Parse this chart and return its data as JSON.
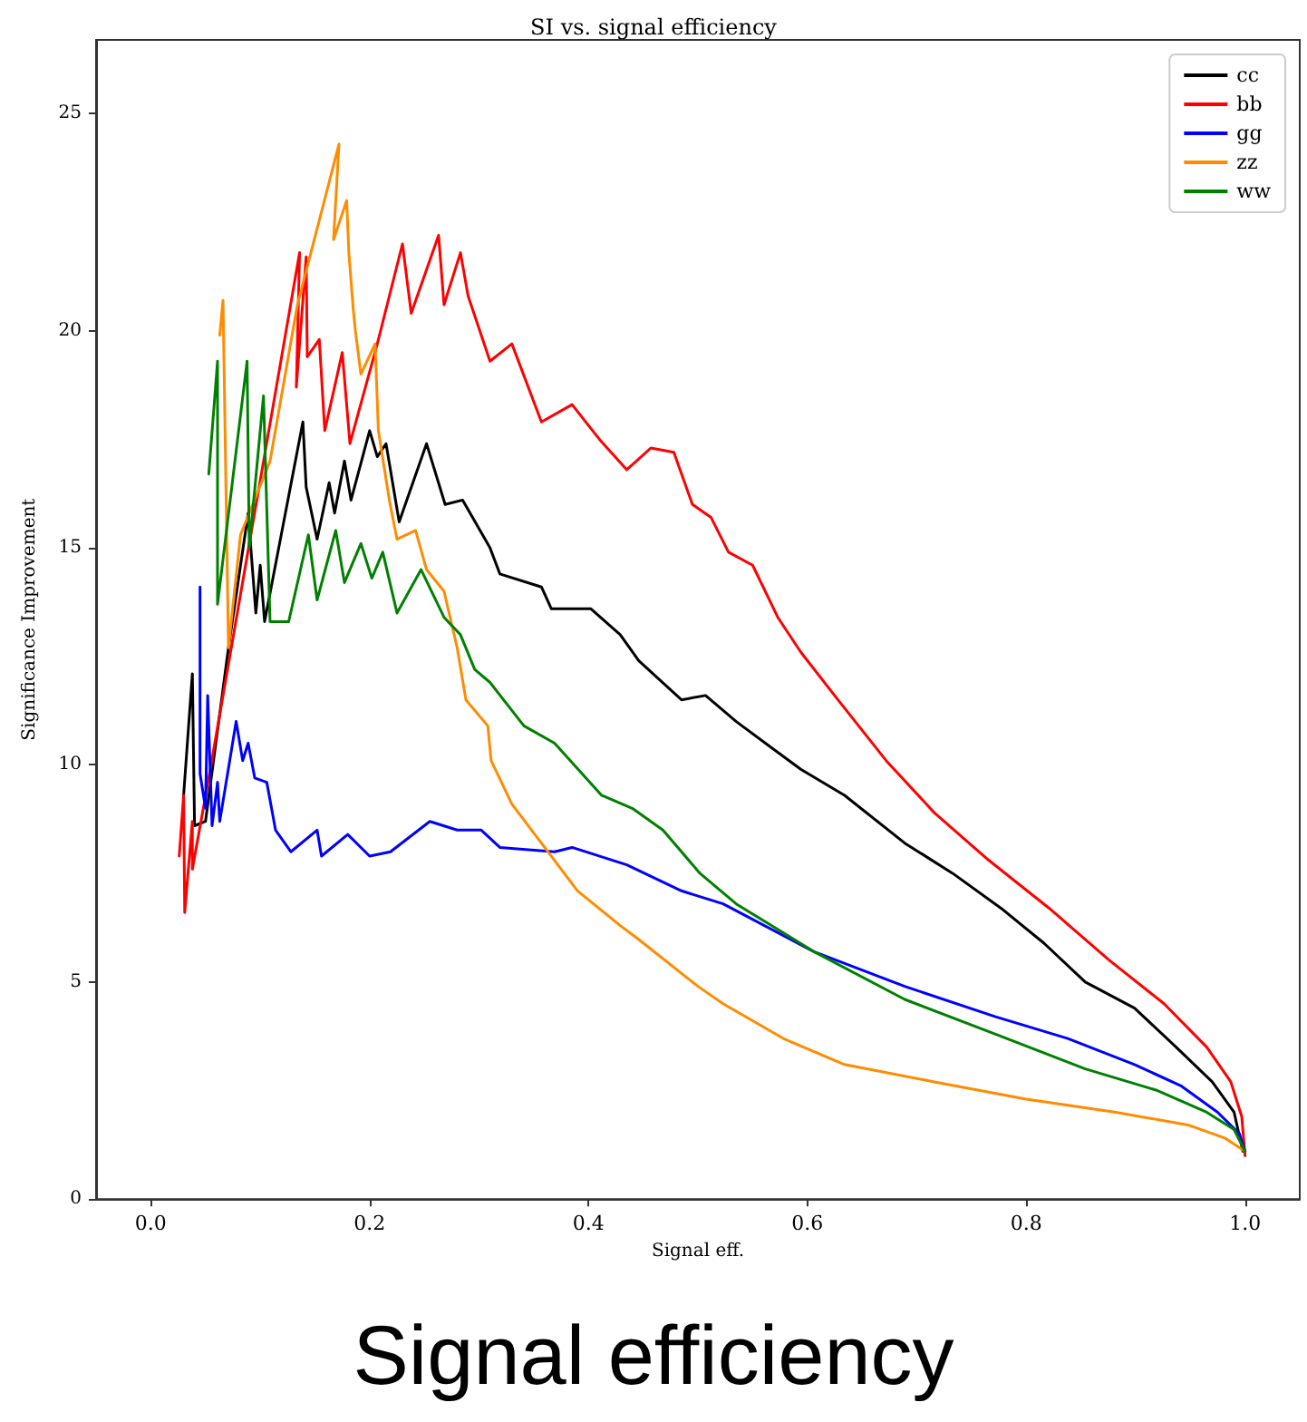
{
  "chart_data": {
    "type": "line",
    "title": "SI vs. signal efficiency",
    "xlabel": "Signal eff.",
    "ylabel": "Significance Improvement",
    "annotations": [
      "Signal efficiency"
    ],
    "xlim": [
      -0.05,
      1.05
    ],
    "xticks": [
      {
        "value": 0,
        "label": "0.0"
      },
      {
        "value": 0.2,
        "label": "0.2"
      },
      {
        "value": 0.4,
        "label": "0.4"
      },
      {
        "value": 0.6,
        "label": "0.6"
      },
      {
        "value": 0.8,
        "label": "0.8"
      },
      {
        "value": 1,
        "label": "1.0"
      }
    ],
    "ylim": [
      0,
      26.7
    ],
    "yticks": [
      0,
      5,
      10,
      15,
      20,
      25
    ],
    "grid": false,
    "legend": "top right",
    "marker": "none",
    "line_style": "solid",
    "series": [
      {
        "name": "cc",
        "color": "#000000",
        "x": [
          0.03,
          0.038,
          0.04,
          0.05,
          0.071,
          0.089,
          0.096,
          0.1,
          0.104,
          0.139,
          0.142,
          0.152,
          0.163,
          0.168,
          0.177,
          0.183,
          0.2,
          0.207,
          0.215,
          0.227,
          0.252,
          0.269,
          0.285,
          0.31,
          0.319,
          0.357,
          0.366,
          0.402,
          0.429,
          0.446,
          0.485,
          0.507,
          0.535,
          0.567,
          0.594,
          0.634,
          0.689,
          0.733,
          0.777,
          0.816,
          0.854,
          0.899,
          0.937,
          0.97,
          0.99,
          0.998
        ],
        "values": [
          9.3,
          12.1,
          8.6,
          8.7,
          12.7,
          15.8,
          13.5,
          14.6,
          13.3,
          17.9,
          16.4,
          15.2,
          16.5,
          15.8,
          17.0,
          16.1,
          17.7,
          17.1,
          17.4,
          15.6,
          17.4,
          16.0,
          16.1,
          15.0,
          14.4,
          14.1,
          13.6,
          13.6,
          13.0,
          12.4,
          11.5,
          11.6,
          11.0,
          10.4,
          9.9,
          9.3,
          8.2,
          7.5,
          6.7,
          5.9,
          5.0,
          4.4,
          3.5,
          2.7,
          2.0,
          1.1
        ]
      },
      {
        "name": "bb",
        "color": "#ff0000",
        "x": [
          0.026,
          0.03,
          0.031,
          0.038,
          0.038,
          0.053,
          0.136,
          0.133,
          0.142,
          0.143,
          0.154,
          0.159,
          0.175,
          0.182,
          0.207,
          0.23,
          0.238,
          0.263,
          0.268,
          0.283,
          0.29,
          0.31,
          0.33,
          0.357,
          0.385,
          0.41,
          0.435,
          0.457,
          0.478,
          0.495,
          0.512,
          0.528,
          0.55,
          0.573,
          0.594,
          0.628,
          0.672,
          0.716,
          0.766,
          0.821,
          0.876,
          0.926,
          0.965,
          0.987,
          0.997,
          1.0
        ],
        "values": [
          7.9,
          9.3,
          6.6,
          8.7,
          7.6,
          9.7,
          21.8,
          18.7,
          21.7,
          19.4,
          19.8,
          17.7,
          19.5,
          17.4,
          19.7,
          22.0,
          20.4,
          22.2,
          20.6,
          21.8,
          20.8,
          19.3,
          19.7,
          17.9,
          18.3,
          17.5,
          16.8,
          17.3,
          17.2,
          16.0,
          15.7,
          14.9,
          14.6,
          13.4,
          12.6,
          11.5,
          10.1,
          8.9,
          7.8,
          6.7,
          5.5,
          4.5,
          3.5,
          2.7,
          1.9,
          1.0
        ]
      },
      {
        "name": "gg",
        "color": "#0000ff",
        "x": [
          0.045,
          0.045,
          0.05,
          0.052,
          0.056,
          0.061,
          0.063,
          0.078,
          0.084,
          0.089,
          0.095,
          0.106,
          0.114,
          0.128,
          0.152,
          0.156,
          0.18,
          0.2,
          0.219,
          0.255,
          0.28,
          0.302,
          0.319,
          0.369,
          0.385,
          0.435,
          0.485,
          0.523,
          0.606,
          0.689,
          0.772,
          0.838,
          0.899,
          0.942,
          0.975,
          0.995,
          1.0
        ],
        "values": [
          14.1,
          9.8,
          9.0,
          11.6,
          8.6,
          9.6,
          8.7,
          11.0,
          10.1,
          10.5,
          9.7,
          9.6,
          8.5,
          8.0,
          8.5,
          7.9,
          8.4,
          7.9,
          8.0,
          8.7,
          8.5,
          8.5,
          8.1,
          8.0,
          8.1,
          7.7,
          7.1,
          6.8,
          5.7,
          4.9,
          4.2,
          3.7,
          3.1,
          2.6,
          2.0,
          1.5,
          1.1
        ]
      },
      {
        "name": "zz",
        "color": "#ff8c00",
        "x": [
          0.063,
          0.066,
          0.071,
          0.082,
          0.109,
          0.134,
          0.172,
          0.167,
          0.179,
          0.181,
          0.185,
          0.187,
          0.192,
          0.205,
          0.208,
          0.218,
          0.225,
          0.242,
          0.252,
          0.268,
          0.28,
          0.288,
          0.308,
          0.311,
          0.33,
          0.357,
          0.39,
          0.429,
          0.445,
          0.5,
          0.523,
          0.578,
          0.634,
          0.716,
          0.8,
          0.882,
          0.949,
          0.982,
          1.0
        ],
        "values": [
          19.9,
          20.7,
          12.7,
          15.3,
          17.0,
          20.6,
          24.3,
          22.1,
          23.0,
          21.8,
          20.5,
          20.0,
          19.0,
          19.7,
          17.7,
          16.1,
          15.2,
          15.4,
          14.5,
          14.0,
          12.7,
          11.5,
          10.9,
          10.1,
          9.1,
          8.2,
          7.1,
          6.3,
          6.0,
          4.9,
          4.5,
          3.7,
          3.1,
          2.7,
          2.3,
          2.0,
          1.7,
          1.4,
          1.1
        ]
      },
      {
        "name": "ww",
        "color": "#008000",
        "x": [
          0.053,
          0.061,
          0.061,
          0.088,
          0.09,
          0.103,
          0.109,
          0.126,
          0.144,
          0.152,
          0.169,
          0.177,
          0.192,
          0.202,
          0.212,
          0.225,
          0.247,
          0.268,
          0.283,
          0.296,
          0.31,
          0.341,
          0.369,
          0.412,
          0.44,
          0.468,
          0.502,
          0.535,
          0.606,
          0.689,
          0.772,
          0.854,
          0.92,
          0.965,
          0.99,
          1.0
        ],
        "values": [
          16.7,
          19.3,
          13.7,
          19.3,
          15.0,
          18.5,
          13.3,
          13.3,
          15.3,
          13.8,
          15.4,
          14.2,
          15.1,
          14.3,
          14.9,
          13.5,
          14.5,
          13.4,
          13.0,
          12.2,
          11.9,
          10.9,
          10.5,
          9.3,
          9.0,
          8.5,
          7.5,
          6.8,
          5.7,
          4.6,
          3.8,
          3.0,
          2.5,
          2.0,
          1.6,
          1.1
        ]
      }
    ]
  }
}
